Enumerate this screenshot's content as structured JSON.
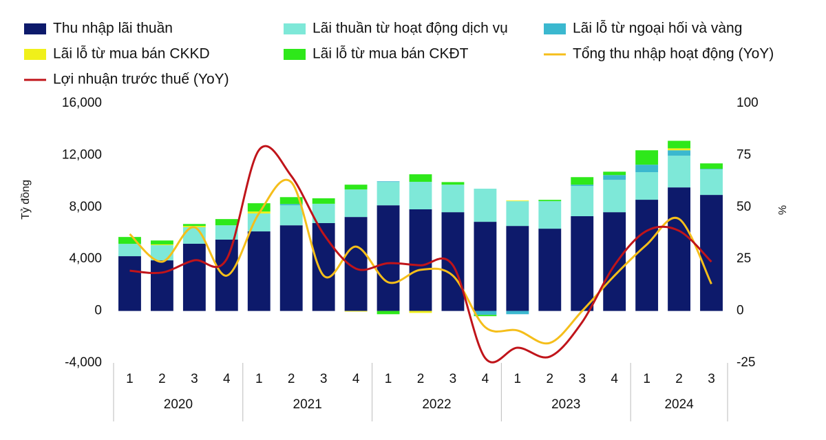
{
  "chart_data": {
    "type": "bar-line",
    "groups": [
      {
        "name": "2020",
        "categories": [
          "1",
          "2",
          "3",
          "4"
        ]
      },
      {
        "name": "2021",
        "categories": [
          "1",
          "2",
          "3",
          "4"
        ]
      },
      {
        "name": "2022",
        "categories": [
          "1",
          "2",
          "3",
          "4"
        ]
      },
      {
        "name": "2023",
        "categories": [
          "1",
          "2",
          "3",
          "4"
        ]
      },
      {
        "name": "2024",
        "categories": [
          "1",
          "2",
          "3"
        ]
      }
    ],
    "ylabel": "Tỷ đồng",
    "y2label": "%",
    "ylim": [
      -4000,
      16000
    ],
    "yticks": [
      {
        "value": -4000,
        "label": "-4,000"
      },
      0,
      {
        "value": 4000,
        "label": "4,000"
      },
      {
        "value": 8000,
        "label": "8,000"
      },
      {
        "value": 12000,
        "label": "12,000"
      },
      {
        "value": 16000,
        "label": "16,000"
      }
    ],
    "y2lim": [
      -25,
      100
    ],
    "y2ticks": [
      -25,
      0,
      25,
      50,
      75,
      100
    ],
    "series": [
      {
        "name": "Thu nhập lãi thuần",
        "kind": "bar",
        "color": "#0d1a6b",
        "values": [
          4220,
          3900,
          5180,
          5500,
          6130,
          6600,
          6770,
          7240,
          8140,
          7830,
          7610,
          6870,
          6550,
          6340,
          7300,
          7610,
          8570,
          9520,
          8940
        ]
      },
      {
        "name": "Lãi thuần từ hoạt động dịch vụ",
        "kind": "bar",
        "color": "#7ee8d8",
        "values": [
          950,
          1170,
          1270,
          1100,
          1380,
          1540,
          1490,
          2120,
          1800,
          2120,
          2120,
          2550,
          1910,
          2120,
          2330,
          2490,
          2120,
          2440,
          1960
        ]
      },
      {
        "name": "Lãi lỗ từ ngoại hối và vàng",
        "kind": "bar",
        "color": "#3bb8cf",
        "values": [
          0,
          0,
          0,
          0,
          0,
          100,
          0,
          0,
          50,
          0,
          0,
          -300,
          -250,
          0,
          100,
          370,
          580,
          420,
          50
        ]
      },
      {
        "name": "Lãi lỗ từ mua bán CKKD",
        "kind": "bar",
        "color": "#f0f01a",
        "values": [
          0,
          60,
          100,
          0,
          150,
          0,
          0,
          -50,
          0,
          -150,
          0,
          0,
          50,
          0,
          0,
          0,
          0,
          150,
          0
        ]
      },
      {
        "name": "Lãi lỗ từ mua bán CKĐT",
        "kind": "bar",
        "color": "#2ee81a",
        "values": [
          530,
          300,
          150,
          480,
          640,
          530,
          420,
          370,
          -250,
          580,
          200,
          -100,
          0,
          100,
          580,
          260,
          1110,
          580,
          420
        ]
      },
      {
        "name": "Tổng thu nhập hoạt động (YoY)",
        "kind": "line",
        "axis": "y2",
        "color": "#f5be1a",
        "values": [
          37,
          23.7,
          40.3,
          17,
          47,
          62,
          17,
          31,
          13.8,
          19.8,
          17,
          -7.8,
          -9.4,
          -15.4,
          0,
          17,
          32,
          44.3,
          13
        ]
      },
      {
        "name": "Lợi nhuận trước thuế (YoY)",
        "kind": "line",
        "axis": "y2",
        "color": "#c0141a",
        "values": [
          19.4,
          18.5,
          24.4,
          25,
          77.5,
          65,
          37,
          20.4,
          23,
          22,
          22,
          -22.7,
          -17.7,
          -22,
          -5.4,
          22,
          38.6,
          38.6,
          23.7
        ]
      }
    ]
  }
}
